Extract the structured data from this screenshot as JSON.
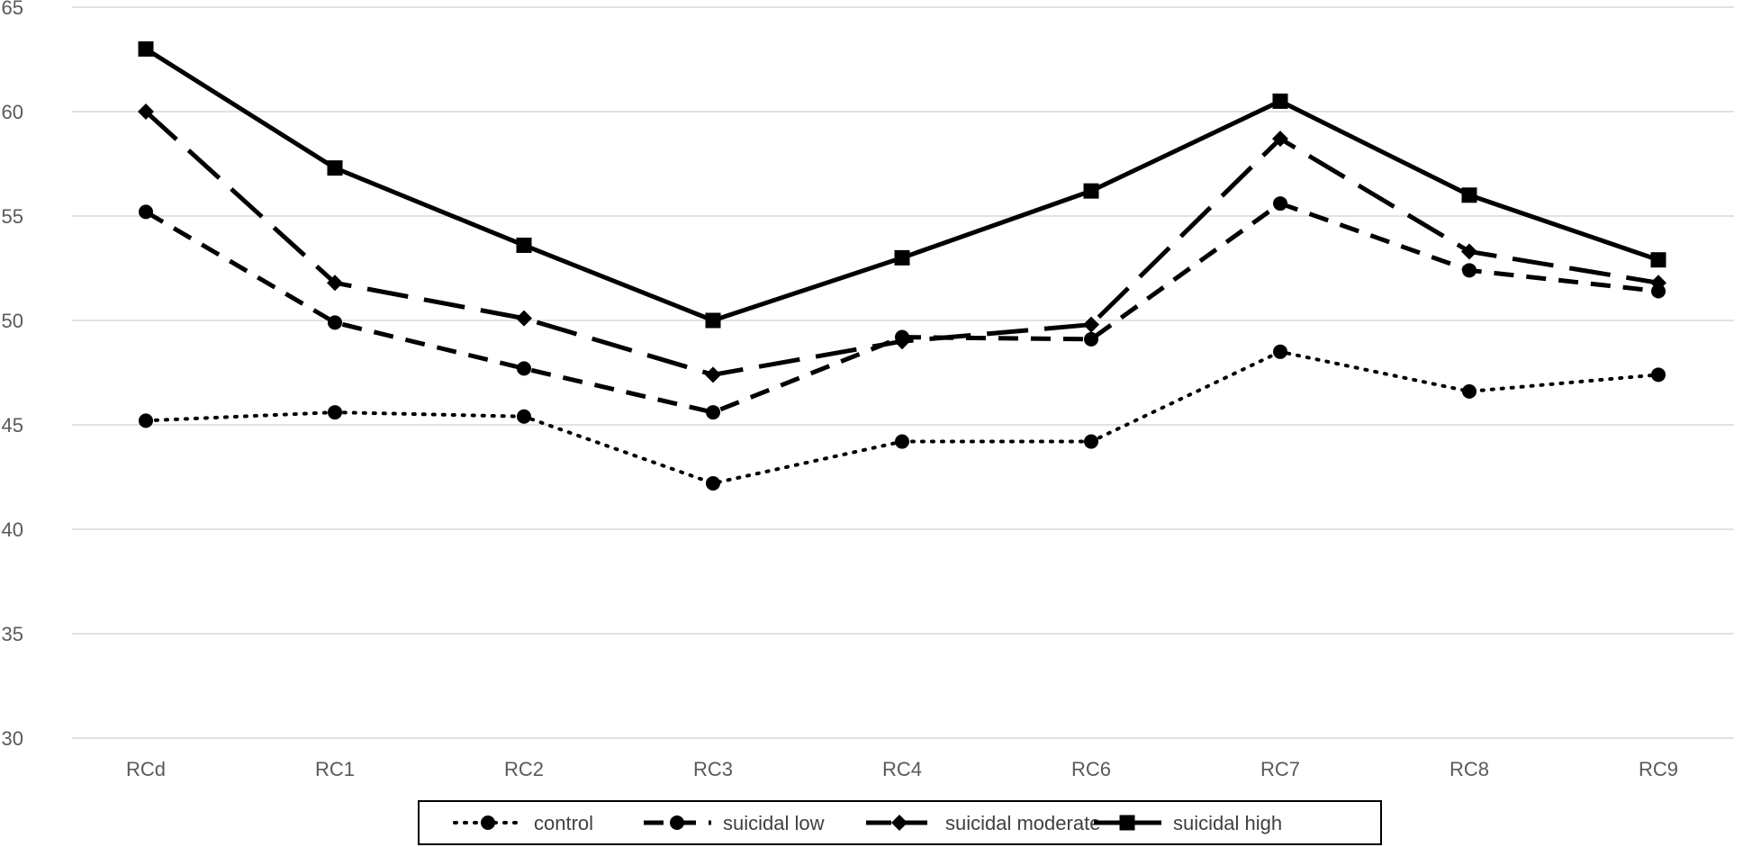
{
  "chart_data": {
    "type": "line",
    "title": "",
    "xlabel": "",
    "ylabel": "",
    "categories": [
      "RCd",
      "RC1",
      "RC2",
      "RC3",
      "RC4",
      "RC6",
      "RC7",
      "RC8",
      "RC9"
    ],
    "ylim": [
      30,
      65
    ],
    "yticks": [
      30,
      35,
      40,
      45,
      50,
      55,
      60,
      65
    ],
    "grid": "horizontal",
    "legend_position": "bottom",
    "series": [
      {
        "name": "control",
        "line_style": "dotted",
        "marker": "circle",
        "color": "#000000",
        "values": [
          45.2,
          45.6,
          45.4,
          42.2,
          44.2,
          44.2,
          48.5,
          46.6,
          47.4
        ]
      },
      {
        "name": "suicidal low",
        "line_style": "dashed",
        "marker": "circle",
        "color": "#000000",
        "values": [
          55.2,
          49.9,
          47.7,
          45.6,
          49.2,
          49.1,
          55.6,
          52.4,
          51.4
        ]
      },
      {
        "name": "suicidal moderate",
        "line_style": "long-dash",
        "marker": "diamond",
        "color": "#000000",
        "values": [
          60.0,
          51.8,
          50.1,
          47.4,
          49.0,
          49.8,
          58.7,
          53.3,
          51.8
        ]
      },
      {
        "name": "suicidal high",
        "line_style": "solid",
        "marker": "square",
        "color": "#000000",
        "values": [
          63.0,
          57.3,
          53.6,
          50.0,
          53.0,
          56.2,
          60.5,
          56.0,
          52.9
        ]
      }
    ]
  }
}
